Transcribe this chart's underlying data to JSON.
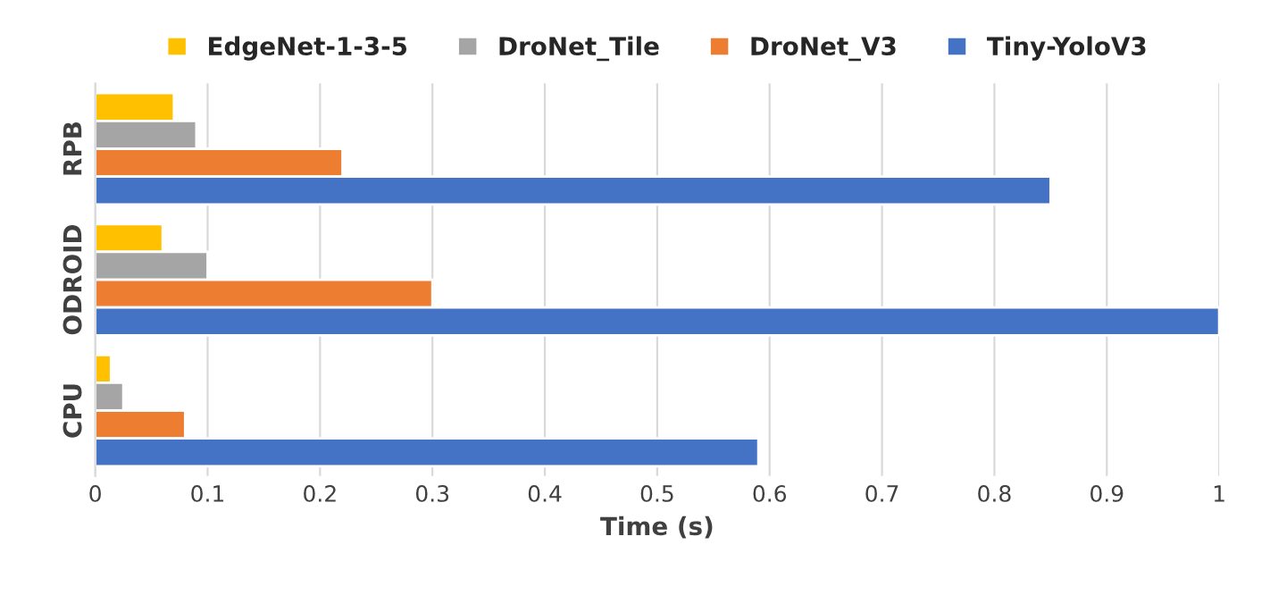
{
  "chart_data": {
    "type": "bar",
    "orientation": "horizontal",
    "xlabel": "Time (s)",
    "categories": [
      "RPB",
      "ODROID",
      "CPU"
    ],
    "series": [
      {
        "name": "EdgeNet-1-3-5",
        "color": "#ffc000",
        "values": [
          0.07,
          0.06,
          0.014
        ]
      },
      {
        "name": "DroNet_Tile",
        "color": "#a5a5a5",
        "values": [
          0.09,
          0.1,
          0.025
        ]
      },
      {
        "name": "DroNet_V3",
        "color": "#ed7d31",
        "values": [
          0.22,
          0.3,
          0.08
        ]
      },
      {
        "name": "Tiny-YoloV3",
        "color": "#4472c4",
        "values": [
          0.85,
          1.0,
          0.59
        ]
      }
    ],
    "xlim": [
      0,
      1
    ],
    "xticks": [
      0,
      0.1,
      0.2,
      0.3,
      0.4,
      0.5,
      0.6,
      0.7,
      0.8,
      0.9,
      1
    ],
    "grid": "x",
    "legend": "top"
  }
}
